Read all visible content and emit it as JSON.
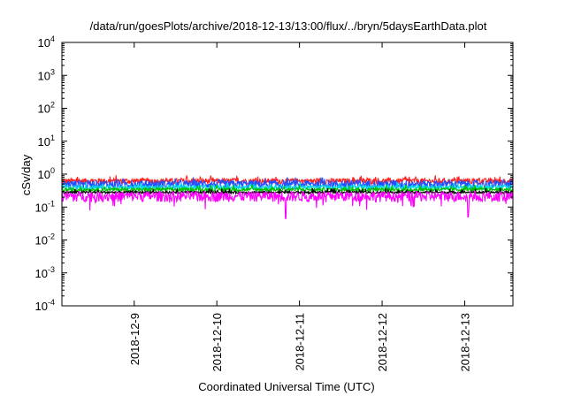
{
  "chart_data": {
    "type": "line",
    "title": "/data/run/goesPlots/archive/2018-12-13/13:00/flux/../bryn/5daysEarthData.plot",
    "xlabel": "Coordinated Universal Time (UTC)",
    "ylabel": "cSv/day",
    "y_scale": "log",
    "ylim_exponent": [
      -4,
      4
    ],
    "y_ticks": [
      {
        "base": "10",
        "exp": "-4"
      },
      {
        "base": "10",
        "exp": "-3"
      },
      {
        "base": "10",
        "exp": "-2"
      },
      {
        "base": "10",
        "exp": "-1"
      },
      {
        "base": "10",
        "exp": "0"
      },
      {
        "base": "10",
        "exp": "1"
      },
      {
        "base": "10",
        "exp": "2"
      },
      {
        "base": "10",
        "exp": "3"
      },
      {
        "base": "10",
        "exp": "4"
      }
    ],
    "xlim": [
      "2018-12-08T03:00",
      "2018-12-13T14:00"
    ],
    "x_ticks": [
      "2018-12-9",
      "2018-12-10",
      "2018-12-11",
      "2018-12-12",
      "2018-12-13"
    ],
    "grid": false,
    "legend": "none",
    "series": [
      {
        "color": "#ff2020",
        "level": 0.62,
        "spread": 0.2
      },
      {
        "color": "#2050ff",
        "level": 0.5,
        "spread": 0.3
      },
      {
        "color": "#00d8e8",
        "level": 0.4,
        "spread": 0.15
      },
      {
        "color": "#00c000",
        "level": 0.34,
        "spread": 0.12
      },
      {
        "color": "#000000",
        "level": 0.28,
        "spread": 0.08
      },
      {
        "color": "#ff00ff",
        "level": 0.22,
        "spread": 0.35
      }
    ],
    "notable_dips": [
      {
        "x": "2018-12-10T20:00",
        "y": 0.045
      },
      {
        "x": "2018-12-13T01:00",
        "y": 0.05
      }
    ]
  }
}
